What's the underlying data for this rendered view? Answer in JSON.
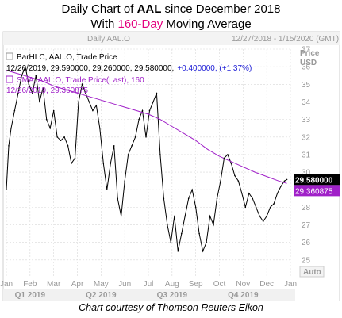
{
  "title": {
    "line1_prefix": "Daily Chart of ",
    "line1_ticker": "AAL",
    "line1_suffix": " since December 2018",
    "line2_prefix": "With ",
    "line2_highlight": "160-Day",
    "line2_suffix": " Moving Average"
  },
  "footer": "Chart courtesy of Thomson Reuters Eikon",
  "header": {
    "label": "Daily AAL.O",
    "date_range": "12/27/2018 - 1/15/2020 (GMT)",
    "y_axis_label": "Price",
    "y_axis_unit": "USD"
  },
  "legend": {
    "price_label": "BarHLC, AAL.O, Trade Price",
    "price_values_a": "12/26/2019, 29.590000, 29.260000, 29.580000,",
    "price_values_b": "+0.400000, (+1.37%)",
    "sma_label": "SMA, AAL.O, Trade Price(Last), 160",
    "sma_values": "12/26/2019, 29.360875"
  },
  "auto_label": "Auto",
  "colors": {
    "price": "#000000",
    "sma": "#a020c8",
    "change": "#1b1bd6",
    "highlight": "#e4007f",
    "grid": "#d8d8d8",
    "axis_text": "#999999"
  },
  "chart_data": {
    "type": "line",
    "title": "Daily Chart of AAL since December 2018 With 160-Day Moving Average",
    "xlabel": "",
    "ylabel": "Price USD",
    "ylim": [
      24,
      37
    ],
    "y_ticks": [
      25,
      26,
      27,
      28,
      29,
      30,
      31,
      32,
      33,
      34,
      35,
      36,
      37
    ],
    "x_ticks": [
      "Jan",
      "Feb",
      "Mar",
      "Apr",
      "May",
      "Jun",
      "Jul",
      "Aug",
      "Sep",
      "Oct",
      "Nov",
      "Dec",
      "Jan"
    ],
    "quarters": [
      "Q1 2019",
      "Q2 2019",
      "Q3 2019",
      "Q4 2019"
    ],
    "grid": true,
    "last_price": "29.580000",
    "last_sma": "29.360875",
    "series": [
      {
        "name": "BarHLC, AAL.O, Trade Price",
        "x": [
          0,
          0.1,
          0.2,
          0.35,
          0.5,
          0.65,
          0.8,
          0.95,
          1.1,
          1.25,
          1.4,
          1.55,
          1.7,
          1.85,
          2.0,
          2.15,
          2.3,
          2.45,
          2.6,
          2.75,
          2.9,
          3.05,
          3.2,
          3.35,
          3.5,
          3.65,
          3.8,
          3.95,
          4.1,
          4.25,
          4.4,
          4.55,
          4.7,
          4.85,
          5.0,
          5.15,
          5.3,
          5.45,
          5.6,
          5.75,
          5.9,
          6.05,
          6.2,
          6.35,
          6.5,
          6.65,
          6.8,
          6.95,
          7.1,
          7.25,
          7.4,
          7.55,
          7.7,
          7.85,
          8.0,
          8.15,
          8.3,
          8.45,
          8.6,
          8.75,
          8.9,
          9.05,
          9.2,
          9.35,
          9.5,
          9.65,
          9.8,
          9.95,
          10.1,
          10.25,
          10.4,
          10.55,
          10.7,
          10.85,
          11.0,
          11.15,
          11.3,
          11.45,
          11.6,
          11.75,
          11.85
        ],
        "values": [
          29.0,
          31.5,
          32.5,
          33.5,
          34.5,
          35.5,
          36.0,
          35.0,
          34.5,
          35.5,
          34.0,
          34.8,
          33.0,
          32.5,
          33.5,
          32.0,
          31.8,
          32.0,
          31.5,
          30.5,
          30.8,
          34.0,
          35.0,
          34.5,
          34.0,
          33.5,
          33.8,
          32.5,
          30.5,
          29.0,
          30.5,
          31.5,
          28.5,
          27.5,
          29.5,
          31.0,
          31.5,
          32.0,
          33.0,
          33.5,
          32.0,
          33.5,
          34.0,
          34.5,
          31.0,
          28.5,
          27.0,
          26.0,
          27.5,
          25.5,
          26.5,
          27.5,
          28.5,
          29.0,
          28.0,
          26.5,
          25.5,
          26.0,
          27.5,
          27.0,
          28.5,
          29.5,
          30.8,
          31.0,
          30.5,
          29.8,
          29.5,
          28.8,
          28.0,
          28.8,
          28.5,
          28.0,
          27.5,
          27.2,
          27.5,
          28.0,
          28.2,
          28.8,
          29.2,
          29.5,
          29.58
        ]
      },
      {
        "name": "SMA, AAL.O, Trade Price(Last), 160",
        "x": [
          0,
          0.5,
          1.0,
          1.5,
          2.0,
          2.5,
          3.0,
          3.5,
          4.0,
          4.5,
          5.0,
          5.5,
          6.0,
          6.5,
          7.0,
          7.5,
          8.0,
          8.5,
          9.0,
          9.5,
          10.0,
          10.5,
          11.0,
          11.5,
          11.85
        ],
        "values": [
          35.8,
          35.6,
          35.4,
          35.2,
          34.9,
          34.7,
          34.5,
          34.3,
          34.1,
          33.9,
          33.7,
          33.5,
          33.3,
          33.0,
          32.6,
          32.2,
          31.8,
          31.3,
          30.9,
          30.6,
          30.3,
          30.0,
          29.75,
          29.5,
          29.36
        ]
      }
    ]
  }
}
